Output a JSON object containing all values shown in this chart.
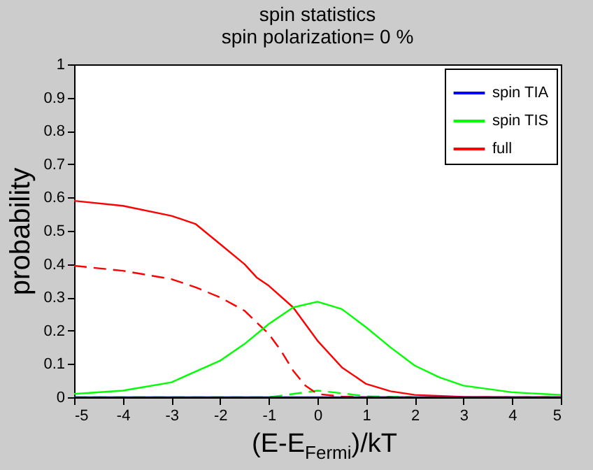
{
  "chart_data": {
    "type": "line",
    "title": "spin statistics",
    "subtitle": "spin polarization= 0 %",
    "xlabel": "(E-E$_{Fermi}$)/kT",
    "ylabel": "probability",
    "xlim": [
      -5,
      5
    ],
    "xticks": [
      -5,
      -4,
      -3,
      -2,
      -1,
      0,
      1,
      2,
      3,
      4,
      5
    ],
    "ylim": [
      0,
      1
    ],
    "yticks": [
      0,
      0.1,
      0.2,
      0.3,
      0.4,
      0.5,
      0.6,
      0.7,
      0.8,
      0.9,
      1
    ],
    "grid": false,
    "legend": "top right",
    "marker": "none",
    "series": [
      {
        "name": "spin TIA",
        "color": "#0000ff",
        "line_style": "solid",
        "x": [
          -5,
          -4,
          -3,
          -2,
          -1,
          0,
          1,
          2,
          3,
          4,
          5
        ],
        "values": [
          0,
          0,
          0,
          0,
          0,
          0,
          0,
          0,
          0,
          0,
          0
        ]
      },
      {
        "name": "spin TIS",
        "color": "#00ff00",
        "line_style": "solid",
        "x": [
          -5,
          -4,
          -3,
          -2,
          -1.5,
          -1,
          -0.5,
          0,
          0.5,
          1,
          1.5,
          2,
          2.5,
          3,
          4,
          5
        ],
        "values": [
          0.01,
          0.02,
          0.045,
          0.11,
          0.16,
          0.22,
          0.27,
          0.287,
          0.265,
          0.21,
          0.15,
          0.095,
          0.06,
          0.035,
          0.015,
          0.007
        ]
      },
      {
        "name": "full",
        "color": "#ff0000",
        "line_style": "solid",
        "x": [
          -5,
          -4,
          -3,
          -2.5,
          -2,
          -1.5,
          -1.25,
          -1,
          -0.5,
          0,
          0.5,
          1,
          1.5,
          2,
          3,
          4,
          5
        ],
        "values": [
          0.59,
          0.575,
          0.545,
          0.52,
          0.46,
          0.4,
          0.36,
          0.335,
          0.27,
          0.17,
          0.09,
          0.04,
          0.018,
          0.007,
          0.001,
          0,
          0
        ]
      },
      {
        "color": "#ff0000",
        "line_style": "dashed",
        "x": [
          -5,
          -4,
          -3,
          -2.5,
          -2,
          -1.5,
          -1,
          -0.75,
          -0.5,
          -0.25,
          0,
          0.5,
          1,
          2,
          3,
          4,
          5
        ],
        "values": [
          0.395,
          0.38,
          0.355,
          0.33,
          0.3,
          0.26,
          0.19,
          0.14,
          0.08,
          0.035,
          0.01,
          0.002,
          0,
          0,
          0,
          0,
          0
        ]
      },
      {
        "color": "#00ff00",
        "line_style": "dashed",
        "x": [
          -5,
          -2,
          -1,
          -0.5,
          0,
          0.5,
          1,
          2,
          3,
          4,
          5
        ],
        "values": [
          0,
          0,
          0,
          0.01,
          0.02,
          0.012,
          0.003,
          0,
          0,
          0,
          0
        ]
      }
    ]
  }
}
